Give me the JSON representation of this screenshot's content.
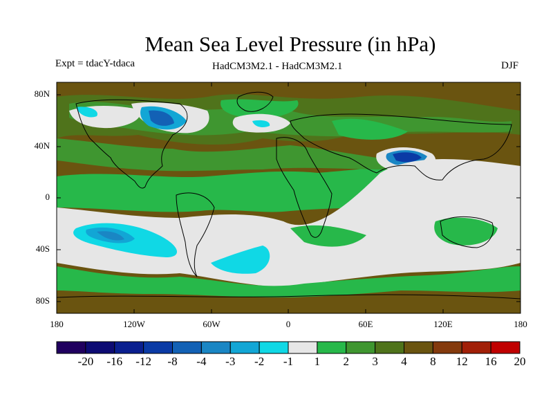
{
  "title": "Mean Sea Level Pressure (in hPa)",
  "experiment": "Expt = tdacY-tdaca",
  "model_comparison": "HadCM3M2.1 - HadCM3M2.1",
  "season": "DJF",
  "lat_labels": [
    "80N",
    "40N",
    "0",
    "40S",
    "80S"
  ],
  "lon_labels": [
    "180",
    "120W",
    "60W",
    "0",
    "60E",
    "120E",
    "180"
  ],
  "colorbar": {
    "levels": [
      "-20",
      "-16",
      "-12",
      "-8",
      "-4",
      "-3",
      "-2",
      "-1",
      "1",
      "2",
      "3",
      "4",
      "8",
      "12",
      "16",
      "20"
    ],
    "colors": [
      "#20005f",
      "#0d0b73",
      "#0a1f8f",
      "#0a3aa5",
      "#1361b5",
      "#1a86c4",
      "#12a6d5",
      "#10d8e5",
      "#e6e6e6",
      "#27b84a",
      "#3f9630",
      "#4f731b",
      "#6a5410",
      "#843a0d",
      "#a11f07",
      "#c00000"
    ]
  },
  "regions": {
    "background": "#6a5410",
    "positive_low": "#27b84a",
    "positive_mid": "#3f9630",
    "positive_high": "#4f731b",
    "neutral": "#e6e6e6",
    "negative_low": "#10d8e5",
    "negative_mid": "#12a6d5",
    "negative_high": "#1a86c4",
    "negative_strong": "#1361b5",
    "negative_max": "#0a3aa5"
  }
}
